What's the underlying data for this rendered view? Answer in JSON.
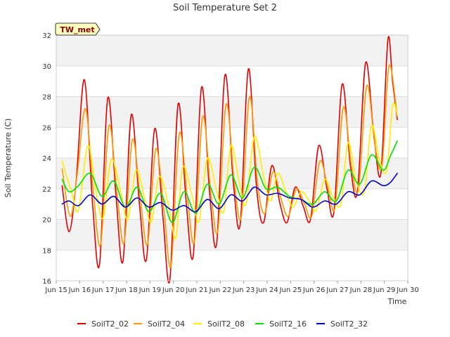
{
  "chart_data": {
    "type": "line",
    "title": "Soil Temperature Set 2",
    "xlabel": "Time",
    "ylabel": "Soil Temperature (C)",
    "site_label": "TW_met",
    "ylim": [
      16,
      32
    ],
    "yticks": [
      16,
      18,
      20,
      22,
      24,
      26,
      28,
      30,
      32
    ],
    "xlim": [
      0,
      15
    ],
    "xtick_labels": [
      "Jun 15",
      "Jun 16",
      "Jun 17",
      "Jun 18",
      "Jun 19",
      "Jun 20",
      "Jun 21",
      "Jun 22",
      "Jun 23",
      "Jun 24",
      "Jun 25",
      "Jun 26",
      "Jun 27",
      "Jun 28",
      "Jun 29",
      "Jun 30"
    ],
    "grid": true,
    "legend_position": "bottom",
    "series": [
      {
        "name": "SoilT2_02",
        "color": "#e00000",
        "x": [
          0.25,
          0.55,
          0.85,
          1.2,
          1.55,
          1.85,
          2.2,
          2.55,
          2.85,
          3.2,
          3.55,
          3.85,
          4.2,
          4.55,
          4.85,
          5.2,
          5.55,
          5.85,
          6.2,
          6.55,
          6.85,
          7.2,
          7.55,
          7.85,
          8.2,
          8.55,
          8.85,
          9.2,
          9.55,
          9.85,
          10.2,
          10.55,
          10.85,
          11.2,
          11.55,
          11.85,
          12.2,
          12.55,
          12.85,
          13.2,
          13.55,
          13.85,
          14.15,
          14.35,
          14.55
        ],
        "y": [
          22.2,
          19.2,
          22.5,
          29.1,
          21.0,
          17.1,
          27.9,
          21.5,
          17.3,
          26.8,
          21.0,
          17.4,
          25.9,
          20.2,
          16.1,
          27.5,
          21.0,
          17.7,
          28.6,
          21.6,
          18.5,
          29.4,
          22.5,
          19.7,
          29.8,
          22.0,
          19.8,
          23.5,
          21.0,
          19.8,
          22.1,
          20.8,
          20.0,
          24.8,
          22.0,
          20.5,
          28.8,
          23.5,
          21.8,
          30.2,
          25.5,
          23.0,
          31.7,
          29.0,
          26.5
        ]
      },
      {
        "name": "SoilT2_04",
        "color": "#ff9900",
        "x": [
          0.25,
          0.6,
          0.9,
          1.25,
          1.6,
          1.9,
          2.25,
          2.6,
          2.9,
          3.25,
          3.6,
          3.9,
          4.25,
          4.6,
          4.9,
          5.25,
          5.6,
          5.9,
          6.25,
          6.6,
          6.9,
          7.25,
          7.6,
          7.9,
          8.25,
          8.6,
          8.9,
          9.25,
          9.6,
          9.9,
          10.25,
          10.6,
          10.9,
          11.25,
          11.6,
          11.9,
          12.25,
          12.6,
          12.9,
          13.25,
          13.6,
          13.9,
          14.2,
          14.55
        ],
        "y": [
          23.3,
          20.2,
          23.0,
          27.2,
          21.5,
          18.4,
          26.1,
          21.6,
          18.5,
          25.2,
          21.2,
          18.4,
          24.6,
          20.6,
          17.0,
          25.6,
          21.4,
          18.6,
          26.7,
          21.7,
          19.3,
          27.5,
          22.4,
          20.2,
          28.0,
          22.2,
          20.4,
          23.1,
          21.3,
          20.2,
          22.0,
          21.0,
          20.2,
          23.8,
          22.0,
          20.8,
          27.3,
          23.4,
          22.0,
          28.7,
          24.8,
          23.5,
          30.0,
          26.7
        ]
      },
      {
        "name": "SoilT2_08",
        "color": "#ffee00",
        "x": [
          0.25,
          0.65,
          0.95,
          1.35,
          1.7,
          2.0,
          2.35,
          2.75,
          3.05,
          3.4,
          3.75,
          4.05,
          4.4,
          4.8,
          5.1,
          5.4,
          5.8,
          6.1,
          6.45,
          6.85,
          7.15,
          7.45,
          7.8,
          8.1,
          8.45,
          8.85,
          9.15,
          9.45,
          9.8,
          10.1,
          10.45,
          10.8,
          11.1,
          11.45,
          11.8,
          12.15,
          12.45,
          12.8,
          13.15,
          13.45,
          13.8,
          14.1,
          14.35,
          14.55
        ],
        "y": [
          23.8,
          21.8,
          20.6,
          24.8,
          21.8,
          20.1,
          23.9,
          21.8,
          20.0,
          23.2,
          21.5,
          19.8,
          22.8,
          20.9,
          18.8,
          23.4,
          21.5,
          19.9,
          24.0,
          21.8,
          20.5,
          24.8,
          22.5,
          21.0,
          25.4,
          22.8,
          21.2,
          23.0,
          21.8,
          20.8,
          21.8,
          21.2,
          20.6,
          22.6,
          21.5,
          21.0,
          25.0,
          22.5,
          21.8,
          26.1,
          23.8,
          23.2,
          27.4,
          26.8
        ]
      },
      {
        "name": "SoilT2_16",
        "color": "#00e000",
        "x": [
          0.25,
          0.55,
          0.95,
          1.45,
          1.95,
          2.45,
          2.95,
          3.45,
          3.95,
          4.45,
          4.95,
          5.45,
          5.95,
          6.45,
          6.95,
          7.45,
          7.95,
          8.45,
          8.95,
          9.45,
          9.95,
          10.45,
          10.95,
          11.45,
          11.95,
          12.45,
          12.95,
          13.45,
          13.95,
          14.25,
          14.55
        ],
        "y": [
          22.6,
          21.8,
          22.2,
          23.0,
          21.5,
          22.5,
          20.8,
          22.1,
          20.5,
          21.7,
          19.8,
          21.8,
          20.4,
          22.3,
          21.0,
          22.9,
          21.4,
          23.4,
          22.0,
          22.1,
          21.5,
          21.3,
          21.0,
          21.8,
          21.2,
          23.2,
          22.3,
          24.2,
          23.2,
          24.1,
          25.1
        ]
      },
      {
        "name": "SoilT2_32",
        "color": "#0000cc",
        "x": [
          0.25,
          0.55,
          0.95,
          1.45,
          1.95,
          2.45,
          2.95,
          3.45,
          3.95,
          4.45,
          4.95,
          5.45,
          5.95,
          6.45,
          6.95,
          7.45,
          7.95,
          8.45,
          8.95,
          9.45,
          9.95,
          10.45,
          10.95,
          11.45,
          11.95,
          12.45,
          12.95,
          13.45,
          13.95,
          14.25,
          14.55
        ],
        "y": [
          21.0,
          21.2,
          20.9,
          21.6,
          21.0,
          21.5,
          20.8,
          21.4,
          20.8,
          21.1,
          20.6,
          20.9,
          20.5,
          21.3,
          20.7,
          21.6,
          21.2,
          22.1,
          21.6,
          21.7,
          21.4,
          21.3,
          20.8,
          21.2,
          21.0,
          21.8,
          21.6,
          22.5,
          22.2,
          22.4,
          23.0
        ]
      }
    ]
  }
}
